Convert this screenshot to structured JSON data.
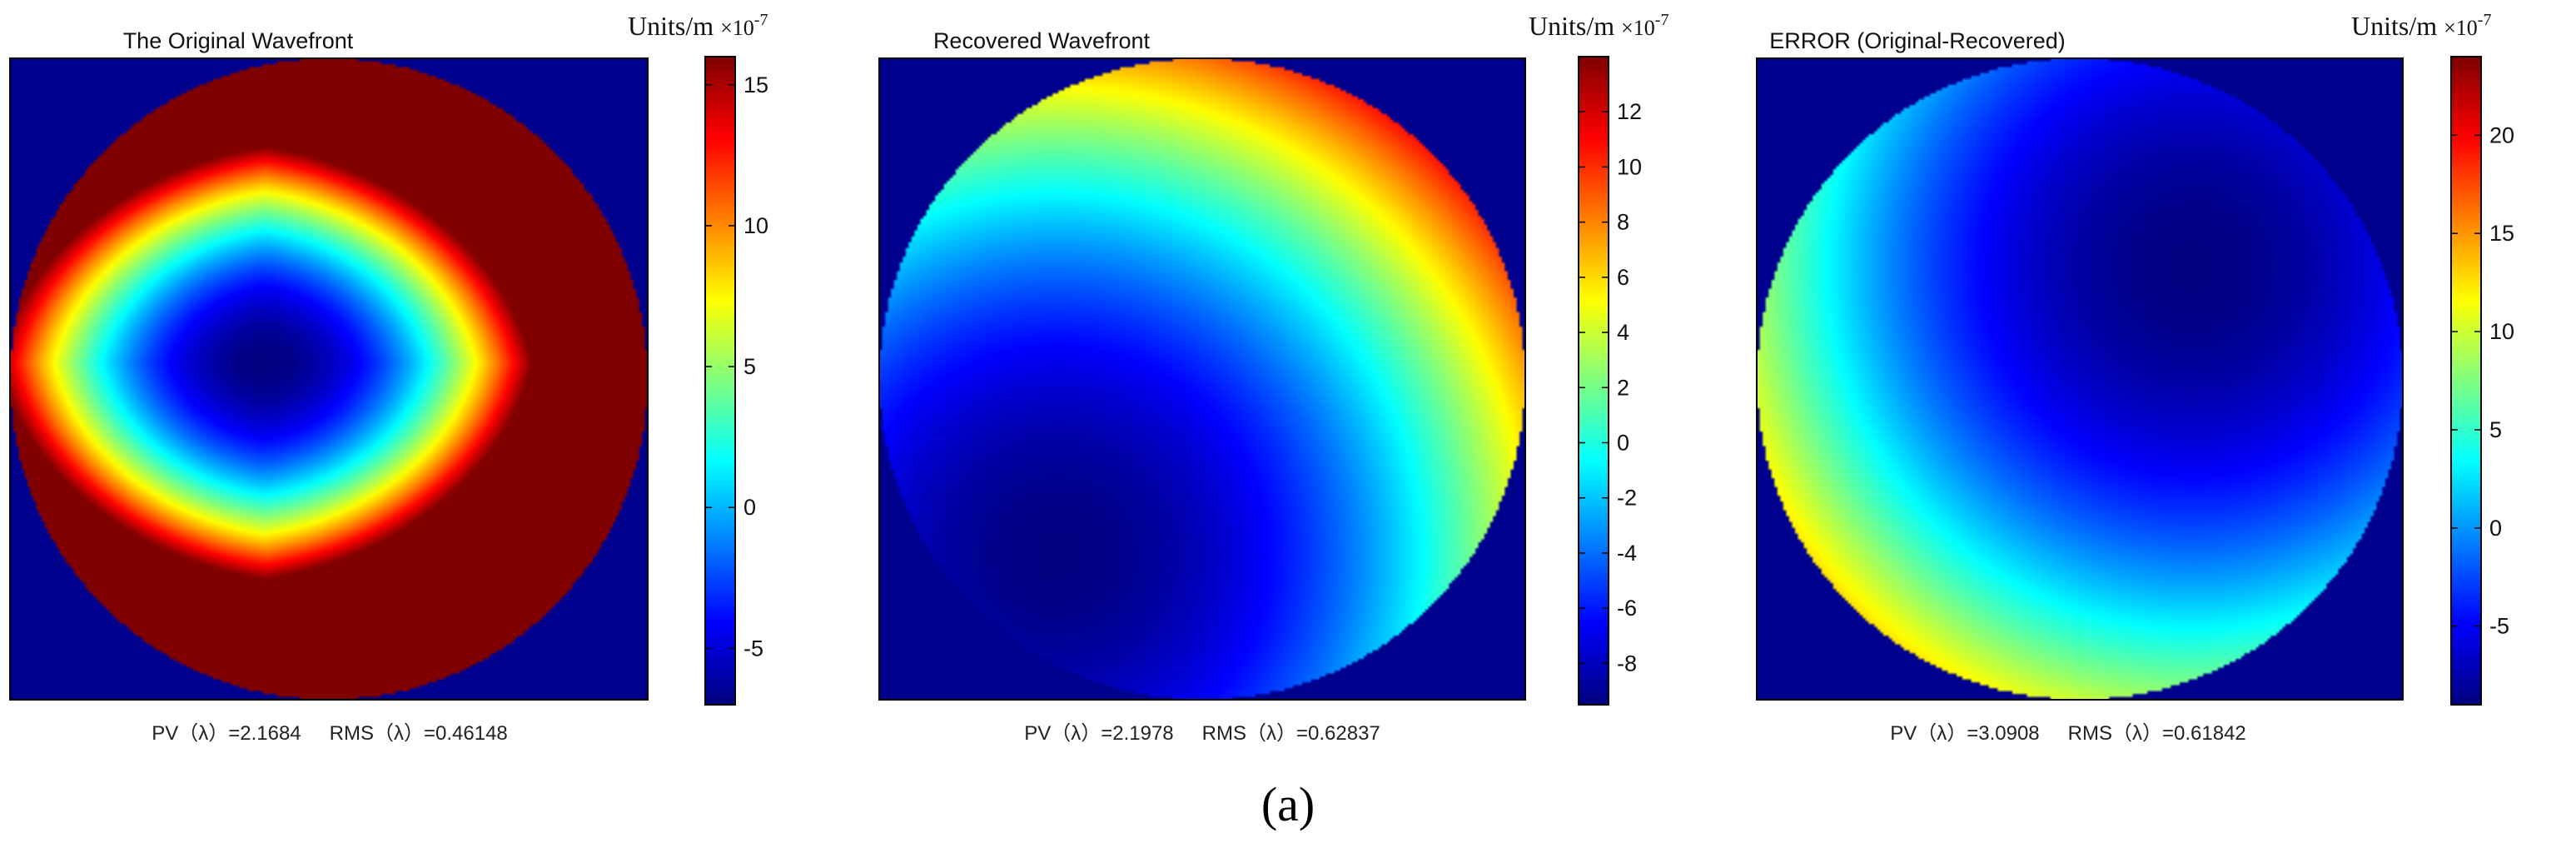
{
  "figure_label": "(a)",
  "colors": {
    "background_region": "#00008F",
    "frame": "#000000"
  },
  "chart_data": [
    {
      "type": "heatmap",
      "title": "The Original Wavefront",
      "colormap": "jet",
      "colorbar": {
        "units": "Units/m",
        "exponent": "×10",
        "exponent_power": "-7",
        "range": [
          -7,
          16
        ],
        "ticks": [
          -5,
          0,
          5,
          10,
          15
        ]
      },
      "stats": {
        "pv_label": "PV（λ）",
        "pv": "=2.1684",
        "rms_label": "RMS（λ）",
        "rms": "=0.46148"
      },
      "field": {
        "kind": "astig",
        "center": [
          -0.2,
          0.05
        ],
        "scale": [
          0.72,
          0.58
        ],
        "range": [
          -7,
          16
        ]
      }
    },
    {
      "type": "heatmap",
      "title": "Recovered Wavefront",
      "colormap": "jet",
      "colorbar": {
        "units": "Units/m",
        "exponent": "×10",
        "exponent_power": "-7",
        "range": [
          -9.5,
          14
        ],
        "ticks": [
          -8,
          -6,
          -4,
          -2,
          0,
          2,
          4,
          6,
          8,
          10,
          12
        ]
      },
      "stats": {
        "pv_label": "PV（λ）",
        "pv": "=2.1978",
        "rms_label": "RMS（λ）",
        "rms": "=0.62837"
      },
      "field": {
        "kind": "bowl",
        "center": [
          -0.45,
          -0.55
        ],
        "scale": [
          1,
          1
        ],
        "range": [
          -9.5,
          14
        ]
      }
    },
    {
      "type": "heatmap",
      "title": "ERROR (Original-Recovered)",
      "colormap": "jet",
      "colorbar": {
        "units": "Units/m",
        "exponent": "×10",
        "exponent_power": "-7",
        "range": [
          -9,
          24
        ],
        "ticks": [
          -5,
          0,
          5,
          10,
          15,
          20
        ]
      },
      "stats": {
        "pv_label": "PV（λ）",
        "pv": "=3.0908",
        "rms_label": "RMS（λ）",
        "rms": "=0.61842"
      },
      "field": {
        "kind": "bowl",
        "center": [
          0.35,
          0.35
        ],
        "scale": [
          1,
          1
        ],
        "range": [
          -9,
          24
        ]
      }
    }
  ]
}
